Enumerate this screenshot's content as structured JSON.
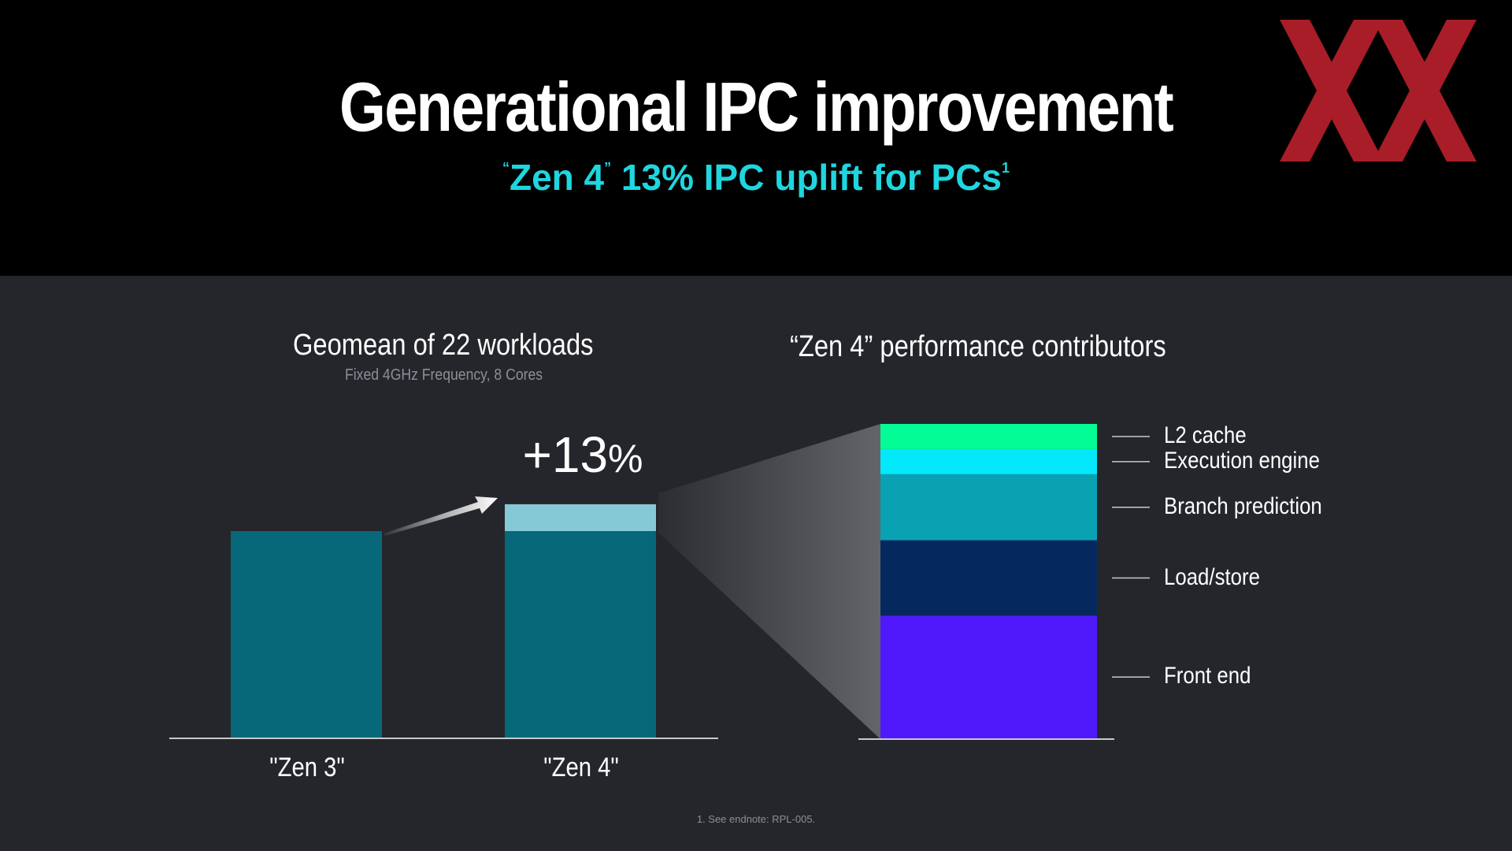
{
  "title": "Generational IPC improvement",
  "subtitle": {
    "open_quote": "“",
    "name": "Zen 4",
    "close_quote": "”",
    "rest": "13% IPC uplift for PCs",
    "footnote_mark": "1"
  },
  "logo_icon": "xx-logo",
  "colors": {
    "header_bg": "#000000",
    "body_bg": "#25262b",
    "accent_cyan": "#1fd6df",
    "logo_red": "#b5202b",
    "bar_base": "#07687a",
    "bar_uplift": "#86c9d6"
  },
  "left_chart": {
    "title": "Geomean of 22 workloads",
    "note": "Fixed 4GHz Frequency, 8 Cores",
    "uplift_label": "+13",
    "uplift_unit": "%"
  },
  "right_chart": {
    "title": "“Zen 4” performance contributors"
  },
  "chart_data": [
    {
      "type": "bar",
      "title": "Geomean of 22 workloads",
      "categories": [
        "\"Zen 3\"",
        "\"Zen 4\""
      ],
      "series": [
        {
          "values": [
            1.0,
            1.0
          ],
          "color": "#07687a"
        },
        {
          "values": [
            0,
            0.13
          ],
          "color": "#86c9d6"
        }
      ],
      "ylim": [
        0,
        1.5
      ],
      "grid": false,
      "annotations": [
        "+13%"
      ]
    },
    {
      "type": "bar",
      "title": "“Zen 4” performance contributors",
      "stacked": true,
      "unit": "share of uplift (%)",
      "segments": [
        {
          "name": "Front end",
          "value": 39,
          "color": "#5019fb"
        },
        {
          "name": "Load/store",
          "value": 24,
          "color": "#05295e"
        },
        {
          "name": "Branch prediction",
          "value": 21,
          "color": "#08a2b3"
        },
        {
          "name": "Execution engine",
          "value": 8,
          "color": "#04e8fb"
        },
        {
          "name": "L2 cache",
          "value": 8,
          "color": "#04fc97"
        }
      ]
    }
  ],
  "footnote": "1. See endnote: RPL-005."
}
